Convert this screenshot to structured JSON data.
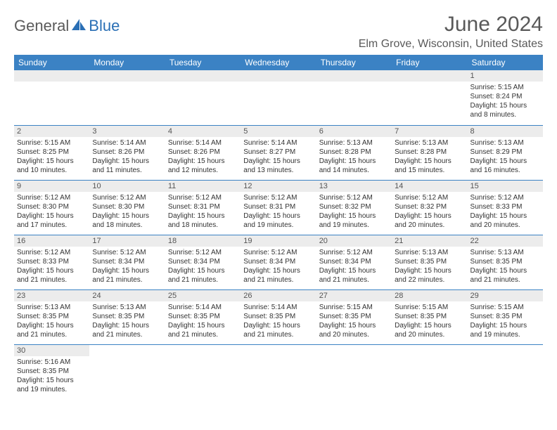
{
  "logo": {
    "part1": "General",
    "part2": "Blue"
  },
  "title": "June 2024",
  "location": "Elm Grove, Wisconsin, United States",
  "colors": {
    "header_bg": "#3b82c4",
    "header_text": "#ffffff",
    "daynum_bg": "#ececec",
    "border": "#3b82c4",
    "text": "#333333",
    "title_text": "#595959",
    "logo_gray": "#5a5a5a",
    "logo_blue": "#2a6fb5"
  },
  "typography": {
    "title_fontsize": 30,
    "location_fontsize": 16,
    "header_fontsize": 12,
    "cell_fontsize": 10,
    "logo_fontsize": 22
  },
  "weekdays": [
    "Sunday",
    "Monday",
    "Tuesday",
    "Wednesday",
    "Thursday",
    "Friday",
    "Saturday"
  ],
  "weeks": [
    [
      null,
      null,
      null,
      null,
      null,
      null,
      {
        "n": "1",
        "sr": "Sunrise: 5:15 AM",
        "ss": "Sunset: 8:24 PM",
        "dl": "Daylight: 15 hours and 8 minutes."
      }
    ],
    [
      {
        "n": "2",
        "sr": "Sunrise: 5:15 AM",
        "ss": "Sunset: 8:25 PM",
        "dl": "Daylight: 15 hours and 10 minutes."
      },
      {
        "n": "3",
        "sr": "Sunrise: 5:14 AM",
        "ss": "Sunset: 8:26 PM",
        "dl": "Daylight: 15 hours and 11 minutes."
      },
      {
        "n": "4",
        "sr": "Sunrise: 5:14 AM",
        "ss": "Sunset: 8:26 PM",
        "dl": "Daylight: 15 hours and 12 minutes."
      },
      {
        "n": "5",
        "sr": "Sunrise: 5:14 AM",
        "ss": "Sunset: 8:27 PM",
        "dl": "Daylight: 15 hours and 13 minutes."
      },
      {
        "n": "6",
        "sr": "Sunrise: 5:13 AM",
        "ss": "Sunset: 8:28 PM",
        "dl": "Daylight: 15 hours and 14 minutes."
      },
      {
        "n": "7",
        "sr": "Sunrise: 5:13 AM",
        "ss": "Sunset: 8:28 PM",
        "dl": "Daylight: 15 hours and 15 minutes."
      },
      {
        "n": "8",
        "sr": "Sunrise: 5:13 AM",
        "ss": "Sunset: 8:29 PM",
        "dl": "Daylight: 15 hours and 16 minutes."
      }
    ],
    [
      {
        "n": "9",
        "sr": "Sunrise: 5:12 AM",
        "ss": "Sunset: 8:30 PM",
        "dl": "Daylight: 15 hours and 17 minutes."
      },
      {
        "n": "10",
        "sr": "Sunrise: 5:12 AM",
        "ss": "Sunset: 8:30 PM",
        "dl": "Daylight: 15 hours and 18 minutes."
      },
      {
        "n": "11",
        "sr": "Sunrise: 5:12 AM",
        "ss": "Sunset: 8:31 PM",
        "dl": "Daylight: 15 hours and 18 minutes."
      },
      {
        "n": "12",
        "sr": "Sunrise: 5:12 AM",
        "ss": "Sunset: 8:31 PM",
        "dl": "Daylight: 15 hours and 19 minutes."
      },
      {
        "n": "13",
        "sr": "Sunrise: 5:12 AM",
        "ss": "Sunset: 8:32 PM",
        "dl": "Daylight: 15 hours and 19 minutes."
      },
      {
        "n": "14",
        "sr": "Sunrise: 5:12 AM",
        "ss": "Sunset: 8:32 PM",
        "dl": "Daylight: 15 hours and 20 minutes."
      },
      {
        "n": "15",
        "sr": "Sunrise: 5:12 AM",
        "ss": "Sunset: 8:33 PM",
        "dl": "Daylight: 15 hours and 20 minutes."
      }
    ],
    [
      {
        "n": "16",
        "sr": "Sunrise: 5:12 AM",
        "ss": "Sunset: 8:33 PM",
        "dl": "Daylight: 15 hours and 21 minutes."
      },
      {
        "n": "17",
        "sr": "Sunrise: 5:12 AM",
        "ss": "Sunset: 8:34 PM",
        "dl": "Daylight: 15 hours and 21 minutes."
      },
      {
        "n": "18",
        "sr": "Sunrise: 5:12 AM",
        "ss": "Sunset: 8:34 PM",
        "dl": "Daylight: 15 hours and 21 minutes."
      },
      {
        "n": "19",
        "sr": "Sunrise: 5:12 AM",
        "ss": "Sunset: 8:34 PM",
        "dl": "Daylight: 15 hours and 21 minutes."
      },
      {
        "n": "20",
        "sr": "Sunrise: 5:12 AM",
        "ss": "Sunset: 8:34 PM",
        "dl": "Daylight: 15 hours and 21 minutes."
      },
      {
        "n": "21",
        "sr": "Sunrise: 5:13 AM",
        "ss": "Sunset: 8:35 PM",
        "dl": "Daylight: 15 hours and 22 minutes."
      },
      {
        "n": "22",
        "sr": "Sunrise: 5:13 AM",
        "ss": "Sunset: 8:35 PM",
        "dl": "Daylight: 15 hours and 21 minutes."
      }
    ],
    [
      {
        "n": "23",
        "sr": "Sunrise: 5:13 AM",
        "ss": "Sunset: 8:35 PM",
        "dl": "Daylight: 15 hours and 21 minutes."
      },
      {
        "n": "24",
        "sr": "Sunrise: 5:13 AM",
        "ss": "Sunset: 8:35 PM",
        "dl": "Daylight: 15 hours and 21 minutes."
      },
      {
        "n": "25",
        "sr": "Sunrise: 5:14 AM",
        "ss": "Sunset: 8:35 PM",
        "dl": "Daylight: 15 hours and 21 minutes."
      },
      {
        "n": "26",
        "sr": "Sunrise: 5:14 AM",
        "ss": "Sunset: 8:35 PM",
        "dl": "Daylight: 15 hours and 21 minutes."
      },
      {
        "n": "27",
        "sr": "Sunrise: 5:15 AM",
        "ss": "Sunset: 8:35 PM",
        "dl": "Daylight: 15 hours and 20 minutes."
      },
      {
        "n": "28",
        "sr": "Sunrise: 5:15 AM",
        "ss": "Sunset: 8:35 PM",
        "dl": "Daylight: 15 hours and 20 minutes."
      },
      {
        "n": "29",
        "sr": "Sunrise: 5:15 AM",
        "ss": "Sunset: 8:35 PM",
        "dl": "Daylight: 15 hours and 19 minutes."
      }
    ],
    [
      {
        "n": "30",
        "sr": "Sunrise: 5:16 AM",
        "ss": "Sunset: 8:35 PM",
        "dl": "Daylight: 15 hours and 19 minutes."
      },
      null,
      null,
      null,
      null,
      null,
      null
    ]
  ]
}
